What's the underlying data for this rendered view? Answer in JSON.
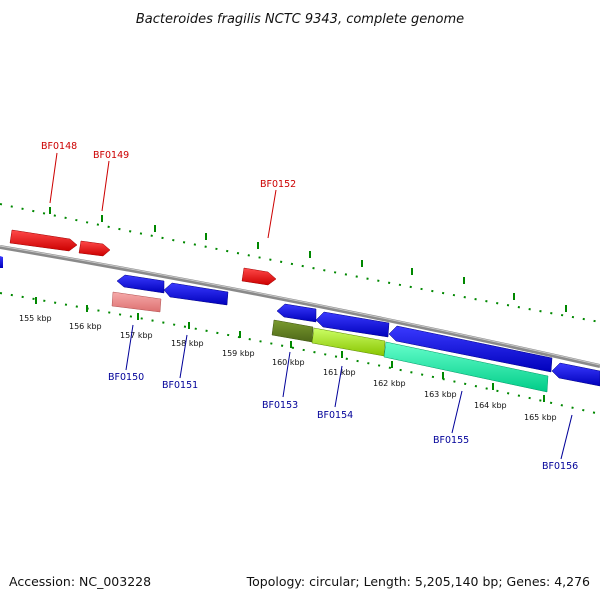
{
  "title": "Bacteroides fragilis NCTC 9343, complete genome",
  "footer": {
    "accession": "Accession: NC_003228",
    "topology": "Topology: circular; Length: 5,205,140 bp; Genes: 4,276"
  },
  "scale_labels": [
    "155 kbp",
    "156 kbp",
    "157 kbp",
    "158 kbp",
    "159 kbp",
    "160 kbp",
    "161 kbp",
    "162 kbp",
    "163 kbp",
    "164 kbp",
    "165 kbp"
  ],
  "gene_labels": {
    "forward": [
      "BF0148",
      "BF0149",
      "BF0152"
    ],
    "reverse": [
      "BF0150",
      "BF0151",
      "BF0153",
      "BF0154",
      "BF0155",
      "BF0156"
    ]
  },
  "colors": {
    "forward_gene": "#ee0000",
    "reverse_gene": "#0000dd",
    "backbone": "#808080",
    "ticks": "#008800"
  }
}
